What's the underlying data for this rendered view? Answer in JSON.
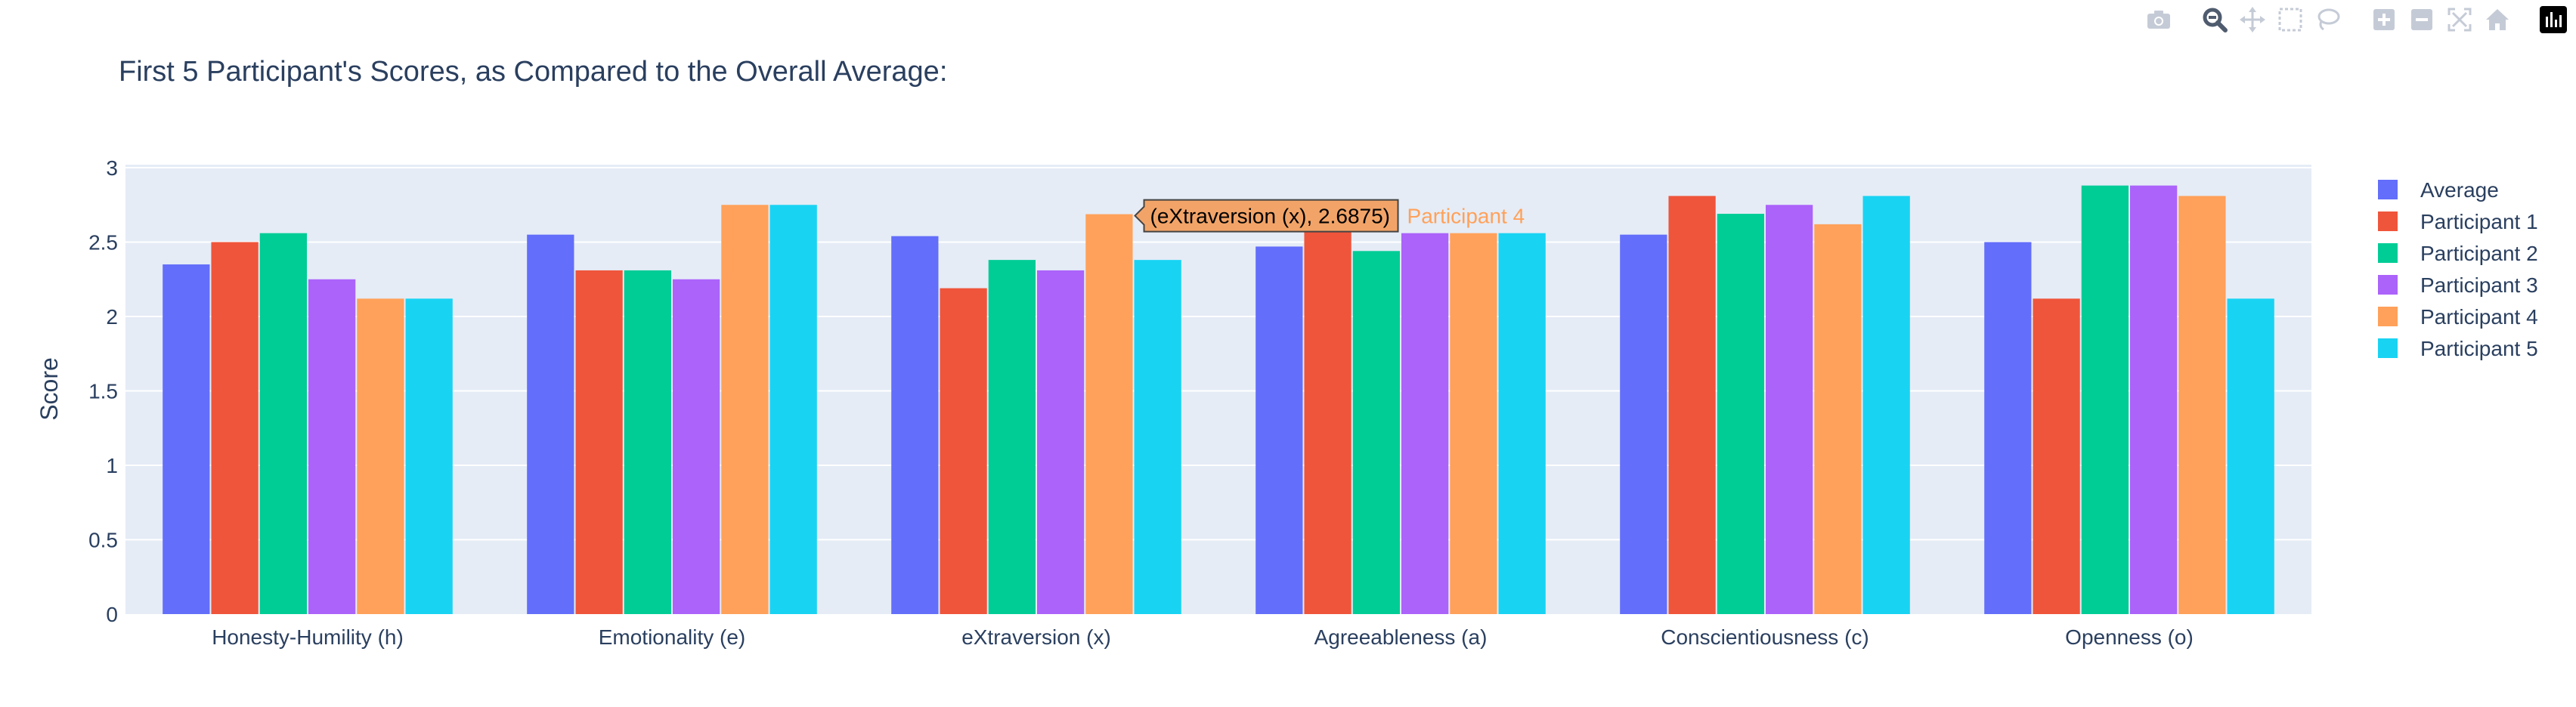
{
  "chart_data": {
    "type": "bar",
    "title": "First 5 Participant's Scores, as Compared to the Overall Average:",
    "xlabel": "",
    "ylabel": "Score",
    "ylim": [
      0,
      3
    ],
    "yticks": [
      0,
      0.5,
      1,
      1.5,
      2,
      2.5,
      3
    ],
    "ytick_labels": [
      "0",
      "0.5",
      "1",
      "1.5",
      "2",
      "2.5",
      "3"
    ],
    "grid": true,
    "legend_position": "right",
    "categories": [
      "Honesty-Humility (h)",
      "Emotionality (e)",
      "eXtraversion (x)",
      "Agreeableness (a)",
      "Conscientiousness (c)",
      "Openness (o)"
    ],
    "series": [
      {
        "name": "Average",
        "color": "#636efa",
        "values": [
          2.35,
          2.55,
          2.54,
          2.47,
          2.55,
          2.5
        ]
      },
      {
        "name": "Participant 1",
        "color": "#ef553b",
        "values": [
          2.5,
          2.31,
          2.19,
          2.62,
          2.81,
          2.12
        ]
      },
      {
        "name": "Participant 2",
        "color": "#00cc96",
        "values": [
          2.56,
          2.31,
          2.38,
          2.44,
          2.69,
          2.88
        ]
      },
      {
        "name": "Participant 3",
        "color": "#ab63fa",
        "values": [
          2.25,
          2.25,
          2.31,
          2.56,
          2.75,
          2.88
        ]
      },
      {
        "name": "Participant 4",
        "color": "#ffa15a",
        "values": [
          2.12,
          2.75,
          2.6875,
          2.56,
          2.62,
          2.81
        ]
      },
      {
        "name": "Participant 5",
        "color": "#19d3f3",
        "values": [
          2.12,
          2.75,
          2.38,
          2.56,
          2.81,
          2.12
        ]
      }
    ],
    "hover": {
      "series_index": 4,
      "category_index": 2,
      "label": "(eXtraversion (x), 2.6875)",
      "series_name": "Participant 4"
    },
    "colors": {
      "plot_bg": "#e5ecf6",
      "grid": "#ffffff",
      "text": "#2a3f5f",
      "hover_bg": "#f2a468"
    }
  },
  "modebar": {
    "icons": [
      "camera-icon",
      "zoom-icon",
      "pan-icon",
      "box-select-icon",
      "lasso-select-icon",
      "zoom-in-icon",
      "zoom-out-icon",
      "autoscale-icon",
      "reset-axes-icon",
      "plotly-logo-icon"
    ]
  }
}
